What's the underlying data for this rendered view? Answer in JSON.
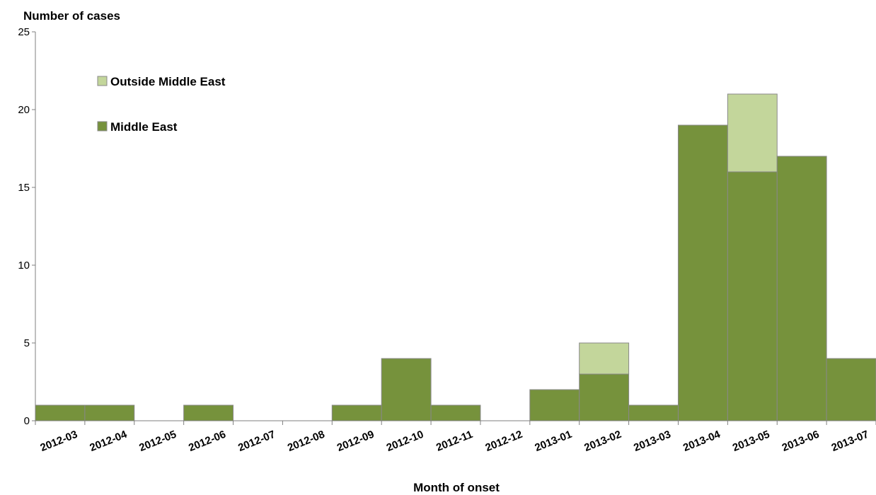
{
  "chart_data": {
    "type": "bar",
    "stacked": true,
    "ylabel": "Number of cases",
    "xlabel": "Month of onset",
    "ylim": [
      0,
      25
    ],
    "yticks": [
      0,
      5,
      10,
      15,
      20,
      25
    ],
    "grid": false,
    "legend_position": "top-left",
    "categories": [
      "2012-03",
      "2012-04",
      "2012-05",
      "2012-06",
      "2012-07",
      "2012-08",
      "2012-09",
      "2012-10",
      "2012-11",
      "2012-12",
      "2013-01",
      "2013-02",
      "2013-03",
      "2013-04",
      "2013-05",
      "2013-06",
      "2013-07"
    ],
    "series": [
      {
        "name": "Middle East",
        "color": "#76923c",
        "values": [
          1,
          1,
          0,
          1,
          0,
          0,
          1,
          4,
          1,
          0,
          2,
          3,
          1,
          19,
          16,
          17,
          4
        ]
      },
      {
        "name": "Outside Middle East",
        "color": "#c3d69b",
        "values": [
          0,
          0,
          0,
          0,
          0,
          0,
          0,
          0,
          0,
          0,
          0,
          2,
          0,
          0,
          5,
          0,
          0
        ]
      }
    ]
  }
}
